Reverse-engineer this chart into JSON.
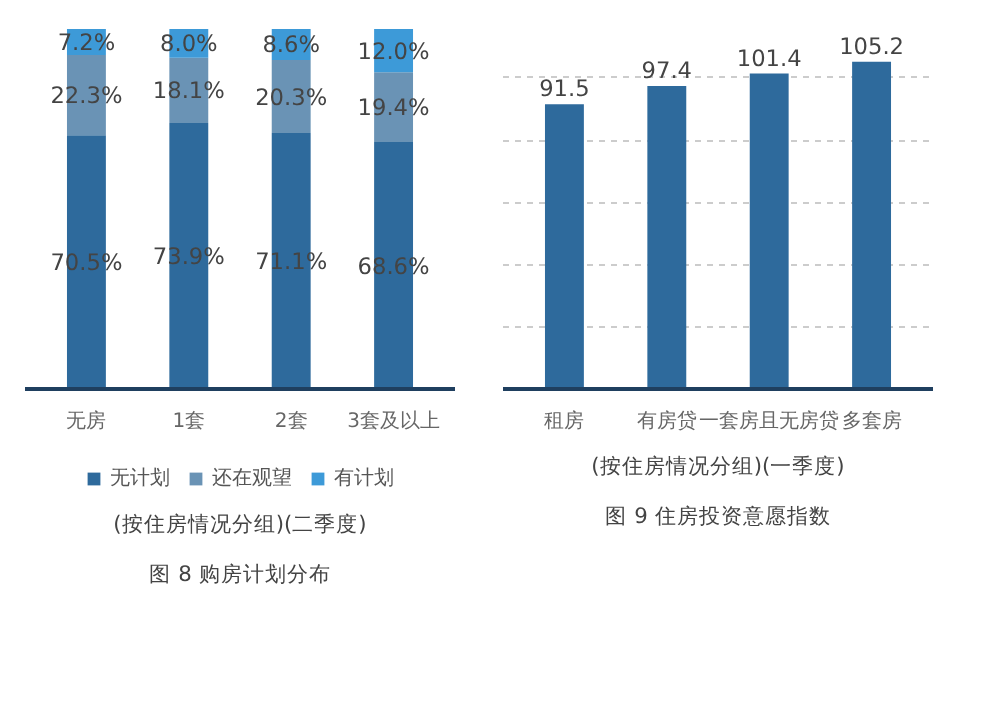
{
  "chart_data": [
    {
      "type": "bar",
      "stacked": true,
      "title": "图 8 购房计划分布",
      "subtitle": "(按住房情况分组)(二季度)",
      "categories": [
        "无房",
        "1套",
        "2套",
        "3套及以上"
      ],
      "tick_labels": "x",
      "legend": "bottom",
      "series": [
        {
          "name": "无计划",
          "color": "#2e6a9c",
          "values": [
            70.5,
            73.9,
            71.1,
            68.6
          ],
          "value_labels": [
            "70.5%",
            "73.9%",
            "71.1%",
            "68.6%"
          ]
        },
        {
          "name": "还在观望",
          "color": "#6a93b5",
          "values": [
            22.3,
            18.1,
            20.3,
            19.4
          ],
          "value_labels": [
            "22.3%",
            "18.1%",
            "20.3%",
            "19.4%"
          ]
        },
        {
          "name": "有计划",
          "color": "#3d9ad8",
          "values": [
            7.2,
            8.0,
            8.6,
            12.0
          ],
          "value_labels": [
            "7.2%",
            "8.0%",
            "8.6%",
            "12.0%"
          ]
        }
      ]
    },
    {
      "type": "bar",
      "title": "图 9 住房投资意愿指数",
      "subtitle": "(按住房情况分组)(一季度)",
      "categories": [
        "租房",
        "有房贷",
        "一套房且无房贷",
        "多套房"
      ],
      "values": [
        91.5,
        97.4,
        101.4,
        105.2
      ],
      "color": "#2e6a9c",
      "grid": "y",
      "tick_labels": "x",
      "data_labels": true
    }
  ]
}
